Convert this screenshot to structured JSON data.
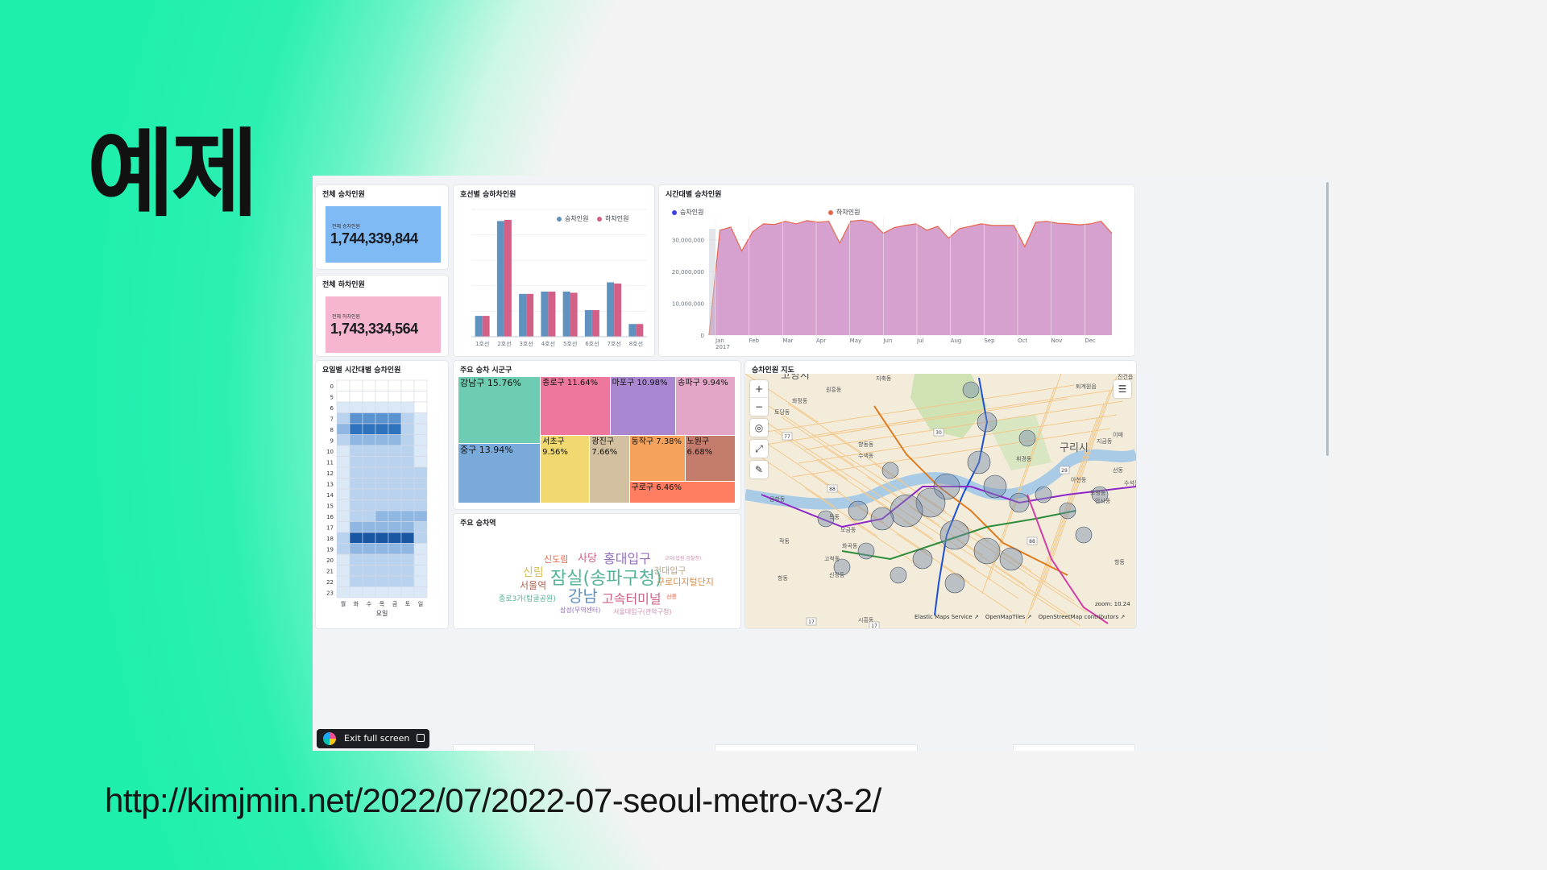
{
  "slide": {
    "title": "예제",
    "url": "http://kimjmin.net/2022/07/2022-07-seoul-metro-v3-2/"
  },
  "panels": {
    "total_boarding": {
      "title": "전체 승차인원",
      "sublabel": "전체 승차인원",
      "value": "1,744,339,844",
      "color": "#7fbaf5"
    },
    "total_alighting": {
      "title": "전체 하차인원",
      "sublabel": "전체 하차인원",
      "value": "1,743,334,564",
      "color": "#f6b6cf"
    },
    "line_chart_title": "호선별 승하차인원",
    "time_chart_title": "시간대별 승차인원",
    "heatmap_title": "요일별 시간대별 승차인원",
    "treemap_title": "주요 승차 시군구",
    "wordcloud_title": "주요 승차역",
    "map_title": "승차인원 지도"
  },
  "chart_data": [
    {
      "type": "bar",
      "title": "호선별 승하차인원",
      "categories": [
        "1호선",
        "2호선",
        "3호선",
        "4호선",
        "5호선",
        "6호선",
        "7호선",
        "8호선"
      ],
      "series": [
        {
          "name": "승차인원",
          "color": "#6092c0",
          "values": [
            18,
            100,
            37,
            39,
            39,
            23,
            47,
            11
          ]
        },
        {
          "name": "하차인원",
          "color": "#d36086",
          "values": [
            18,
            101,
            37,
            39,
            38,
            23,
            46,
            11
          ]
        }
      ],
      "legend": "top-right",
      "ylim": [
        0,
        110
      ]
    },
    {
      "type": "area",
      "title": "시간대별 승차인원",
      "x_labels": [
        "Jan\n2017",
        "Feb",
        "Mar",
        "Apr",
        "May",
        "Jun",
        "Jul",
        "Aug",
        "Sep",
        "Oct",
        "Nov",
        "Dec"
      ],
      "y_ticks": [
        "0",
        "10,000,000",
        "20,000,000",
        "30,000,000"
      ],
      "ylim": [
        0,
        37000000
      ],
      "series": [
        {
          "name": "승차인원",
          "color": "#3f3fdf",
          "values": []
        },
        {
          "name": "하차인원",
          "color": "#e7664c",
          "values": [
            0,
            33000000,
            34000000,
            26500000,
            32500000,
            35000000,
            34800000,
            35800000,
            35000000,
            36000000,
            35500000,
            35800000,
            29000000,
            35800000,
            36200000,
            35500000,
            32000000,
            33800000,
            34500000,
            35000000,
            33000000,
            34200000,
            30500000,
            33500000,
            34200000,
            35000000,
            34500000,
            34500000,
            34500000,
            27800000,
            35500000,
            35800000,
            35200000,
            35000000,
            34700000,
            35000000,
            35800000,
            32000000
          ]
        }
      ],
      "fill": "#d6a1cf",
      "legend": "top-left"
    },
    {
      "type": "heatmap",
      "title": "요일별 시간대별 승차인원",
      "xlabel": "요일",
      "x_labels": [
        "월",
        "화",
        "수",
        "목",
        "금",
        "토",
        "일"
      ],
      "y_labels": [
        "0",
        "5",
        "6",
        "7",
        "8",
        "9",
        "10",
        "11",
        "12",
        "13",
        "14",
        "15",
        "16",
        "17",
        "18",
        "19",
        "20",
        "21",
        "22",
        "23"
      ],
      "values": [
        [
          0,
          0,
          0,
          0,
          0,
          0,
          0
        ],
        [
          0,
          0,
          0,
          0,
          0,
          0,
          0
        ],
        [
          1,
          1,
          1,
          1,
          1,
          1,
          0
        ],
        [
          2,
          4,
          4,
          4,
          4,
          2,
          1
        ],
        [
          3,
          5,
          5,
          5,
          5,
          2,
          1
        ],
        [
          2,
          3,
          3,
          3,
          3,
          2,
          1
        ],
        [
          1,
          2,
          2,
          2,
          2,
          2,
          1
        ],
        [
          1,
          2,
          2,
          2,
          2,
          2,
          1
        ],
        [
          1,
          2,
          2,
          2,
          2,
          2,
          2
        ],
        [
          1,
          2,
          2,
          2,
          2,
          2,
          2
        ],
        [
          1,
          2,
          2,
          2,
          2,
          2,
          2
        ],
        [
          1,
          2,
          2,
          2,
          2,
          2,
          2
        ],
        [
          1,
          2,
          2,
          3,
          3,
          3,
          3
        ],
        [
          1,
          3,
          3,
          3,
          3,
          3,
          2
        ],
        [
          2,
          6,
          6,
          6,
          6,
          6,
          2
        ],
        [
          2,
          3,
          3,
          3,
          3,
          3,
          1
        ],
        [
          1,
          2,
          2,
          2,
          2,
          2,
          1
        ],
        [
          1,
          2,
          2,
          2,
          2,
          2,
          1
        ],
        [
          1,
          2,
          2,
          2,
          2,
          2,
          1
        ],
        [
          1,
          1,
          1,
          1,
          1,
          1,
          1
        ]
      ]
    },
    {
      "type": "treemap",
      "title": "주요 승차 시군구",
      "items": [
        {
          "label": "강남구 15.76%",
          "value": 15.76,
          "color": "#6dccb1"
        },
        {
          "label": "중구 13.94%",
          "value": 13.94,
          "color": "#79aad9"
        },
        {
          "label": "종로구 11.64%",
          "value": 11.64,
          "color": "#ee789d"
        },
        {
          "label": "마포구 10.98%",
          "value": 10.98,
          "color": "#a987d1"
        },
        {
          "label": "송파구 9.94%",
          "value": 9.94,
          "color": "#e4a6c7"
        },
        {
          "label": "서초구 9.56%",
          "value": 9.56,
          "color": "#f1d86f"
        },
        {
          "label": "광진구 7.66%",
          "value": 7.66,
          "color": "#d2c0a0"
        },
        {
          "label": "동작구 7.38%",
          "value": 7.38,
          "color": "#f5a35c"
        },
        {
          "label": "노원구 6.68%",
          "value": 6.68,
          "color": "#c47c6c"
        },
        {
          "label": "구로구 6.46%",
          "value": 6.46,
          "color": "#ff7e62"
        }
      ]
    }
  ],
  "wordcloud": {
    "title": "주요 승차역",
    "words": [
      {
        "text": "신도림",
        "color": "#e7664c",
        "size": 11
      },
      {
        "text": "사당",
        "color": "#d36086",
        "size": 13
      },
      {
        "text": "홍대입구",
        "color": "#9170b8",
        "size": 16
      },
      {
        "text": "교대(법원.검찰청)",
        "color": "#ca8eae",
        "size": 6
      },
      {
        "text": "신림",
        "color": "#d6bf57",
        "size": 14
      },
      {
        "text": "잠실(송파구청)",
        "color": "#54b399",
        "size": 22
      },
      {
        "text": "건대입구",
        "color": "#b9a888",
        "size": 11
      },
      {
        "text": "구로디지털단지",
        "color": "#da8b45",
        "size": 11
      },
      {
        "text": "서울역",
        "color": "#aa6556",
        "size": 12
      },
      {
        "text": "종로3가(탑골공원)",
        "color": "#54b399",
        "size": 9
      },
      {
        "text": "강남",
        "color": "#6092c0",
        "size": 20
      },
      {
        "text": "고속터미널",
        "color": "#d36086",
        "size": 16
      },
      {
        "text": "선릉",
        "color": "#e7664c",
        "size": 7
      },
      {
        "text": "삼성(무역센터)",
        "color": "#9170b8",
        "size": 8
      },
      {
        "text": "서울대입구(관악구청)",
        "color": "#ca8eae",
        "size": 8
      }
    ]
  },
  "map": {
    "labels": [
      "고양시",
      "지축동",
      "원흥동",
      "화정동",
      "토당동",
      "향동동",
      "수색동",
      "공항동",
      "목동",
      "오금동",
      "화곡동",
      "작동",
      "고척동",
      "항동",
      "신정동",
      "시흥동",
      "구리시",
      "퇴계원읍",
      "진건읍",
      "지금동",
      "이패",
      "선동",
      "아천동",
      "토평동",
      "수석동",
      "안사동",
      "항동",
      "휘경동"
    ],
    "road_numbers": [
      "77",
      "88",
      "30",
      "17",
      "29",
      "88",
      "17"
    ],
    "zoom_text": "zoom: 10.24",
    "attribution": [
      "Elastic Maps Service",
      "OpenMapTiles",
      "OpenStreetMap contributors"
    ],
    "controls": [
      "zoom-in",
      "zoom-out",
      "locate",
      "fit-bounds",
      "draw-tool",
      "layers"
    ]
  },
  "exit_button": {
    "label": "Exit full screen"
  }
}
